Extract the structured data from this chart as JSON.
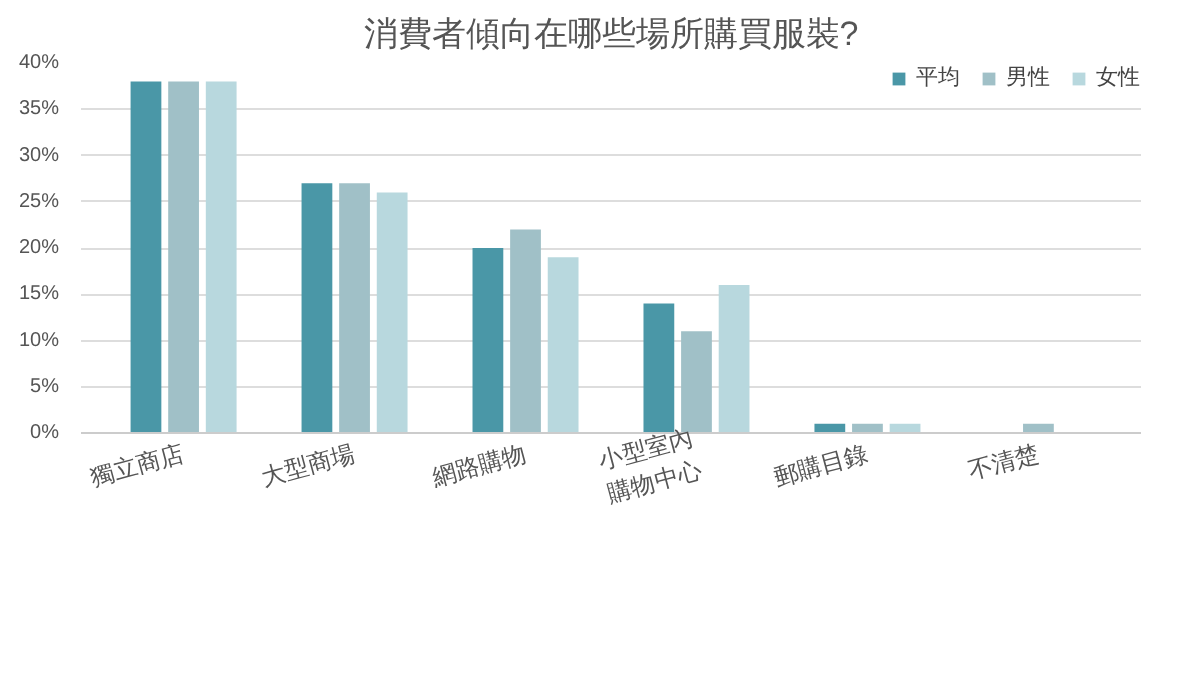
{
  "chart_data": {
    "type": "bar",
    "title": "消費者傾向在哪些場所購買服裝?",
    "categories": [
      "獨立商店",
      "大型商場",
      "網路購物",
      "小型室內購物中心",
      "郵購目錄",
      "不清楚"
    ],
    "series": [
      {
        "name": "平均",
        "color": "#4a97a7",
        "values": [
          38,
          27,
          20,
          14,
          1,
          0
        ]
      },
      {
        "name": "男性",
        "color": "#a0c0c7",
        "values": [
          38,
          27,
          22,
          11,
          1,
          1
        ]
      },
      {
        "name": "女性",
        "color": "#b8d8de",
        "values": [
          38,
          26,
          19,
          16,
          1,
          0
        ]
      }
    ],
    "ylim": [
      0,
      40
    ],
    "yticks": [
      {
        "value": 0,
        "label": "0%"
      },
      {
        "value": 5,
        "label": "5%"
      },
      {
        "value": 10,
        "label": "10%"
      },
      {
        "value": 15,
        "label": "15%"
      },
      {
        "value": 20,
        "label": "20%"
      },
      {
        "value": 25,
        "label": "25%"
      },
      {
        "value": 30,
        "label": "30%"
      },
      {
        "value": 35,
        "label": "35%"
      },
      {
        "value": 40,
        "label": "40%"
      }
    ],
    "grid": "y",
    "legend": "top right"
  }
}
